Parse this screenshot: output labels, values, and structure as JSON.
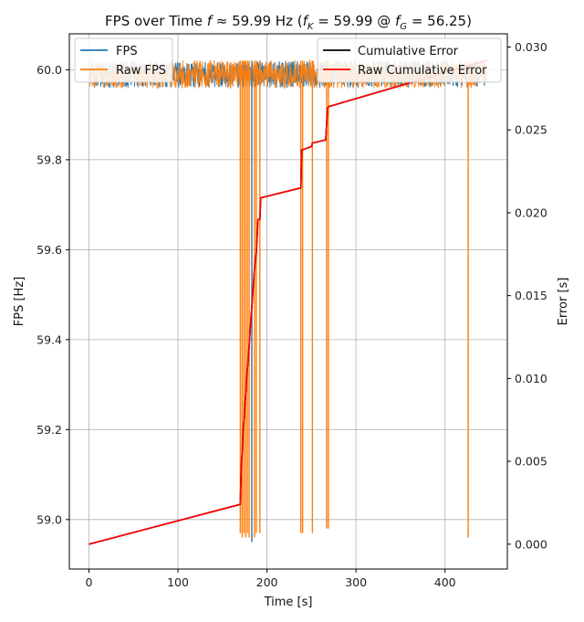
{
  "chart_data": {
    "type": "line",
    "title": "FPS over Time f ≈ 59.99 Hz (f_K = 59.99 @ f_G = 56.25)",
    "xlabel": "Time [s]",
    "ylabel": "FPS [Hz]",
    "y2label": "Error [s]",
    "xlim": [
      -22,
      470
    ],
    "ylim": [
      58.89,
      60.08
    ],
    "y2lim": [
      -0.0015,
      0.0308
    ],
    "xticks": [
      0,
      100,
      200,
      300,
      400
    ],
    "yticks": [
      59.0,
      59.2,
      59.4,
      59.6,
      59.8,
      60.0
    ],
    "y2ticks": [
      0.0,
      0.005,
      0.01,
      0.015,
      0.02,
      0.025,
      0.03
    ],
    "grid": true,
    "legend_left": {
      "placement": "upper-left",
      "entries": [
        "FPS",
        "Raw FPS"
      ]
    },
    "legend_right": {
      "placement": "upper-right",
      "entries": [
        "Cumulative Error",
        "Raw Cumulative Error"
      ]
    },
    "fps_band": {
      "x_range": [
        0,
        447
      ],
      "y_range": [
        59.96,
        60.02
      ]
    },
    "fps_dips": [
      {
        "x": 170,
        "y": 58.97
      },
      {
        "x": 172,
        "y": 58.96
      },
      {
        "x": 174,
        "y": 58.97
      },
      {
        "x": 176,
        "y": 58.96
      },
      {
        "x": 178,
        "y": 58.97
      },
      {
        "x": 180,
        "y": 58.96
      },
      {
        "x": 183,
        "y": 58.95
      },
      {
        "x": 186,
        "y": 58.96
      },
      {
        "x": 188,
        "y": 58.97
      },
      {
        "x": 192,
        "y": 58.97
      },
      {
        "x": 238,
        "y": 58.97
      },
      {
        "x": 240,
        "y": 58.97
      },
      {
        "x": 251,
        "y": 58.97
      },
      {
        "x": 267,
        "y": 58.98
      },
      {
        "x": 269,
        "y": 58.98
      },
      {
        "x": 426,
        "y": 58.96
      }
    ],
    "series": [
      {
        "name": "FPS",
        "color": "#1f77b4"
      },
      {
        "name": "Raw FPS",
        "color": "#ff7f0e"
      },
      {
        "name": "Cumulative Error",
        "color": "#000000",
        "x": [
          0,
          170,
          171,
          172,
          173,
          174,
          175,
          176,
          177,
          178,
          179,
          180,
          181,
          182,
          183,
          184,
          185,
          186,
          188,
          190,
          192,
          193,
          238,
          239,
          240,
          250,
          251,
          266,
          267,
          268,
          269,
          447
        ],
        "y": [
          0.0,
          0.0024,
          0.0045,
          0.0055,
          0.0066,
          0.0074,
          0.0082,
          0.009,
          0.0099,
          0.0106,
          0.0112,
          0.012,
          0.0128,
          0.0136,
          0.0143,
          0.0151,
          0.0159,
          0.0166,
          0.0176,
          0.0196,
          0.0196,
          0.0209,
          0.0215,
          0.0238,
          0.0238,
          0.024,
          0.0242,
          0.0244,
          0.0254,
          0.0263,
          0.0264,
          0.0292
        ]
      },
      {
        "name": "Raw Cumulative Error",
        "color": "#ff0000",
        "x": [
          0,
          170,
          171,
          172,
          173,
          174,
          175,
          176,
          177,
          178,
          179,
          180,
          181,
          182,
          183,
          184,
          185,
          186,
          188,
          190,
          192,
          193,
          238,
          239,
          240,
          250,
          251,
          266,
          267,
          268,
          269,
          447
        ],
        "y": [
          0.0,
          0.0024,
          0.0045,
          0.0055,
          0.0066,
          0.0074,
          0.0082,
          0.009,
          0.0099,
          0.0106,
          0.0112,
          0.012,
          0.0128,
          0.0136,
          0.0143,
          0.0151,
          0.0159,
          0.0166,
          0.0176,
          0.0196,
          0.0196,
          0.0209,
          0.0215,
          0.0238,
          0.0238,
          0.024,
          0.0242,
          0.0244,
          0.0254,
          0.0263,
          0.0264,
          0.0292
        ]
      }
    ]
  }
}
